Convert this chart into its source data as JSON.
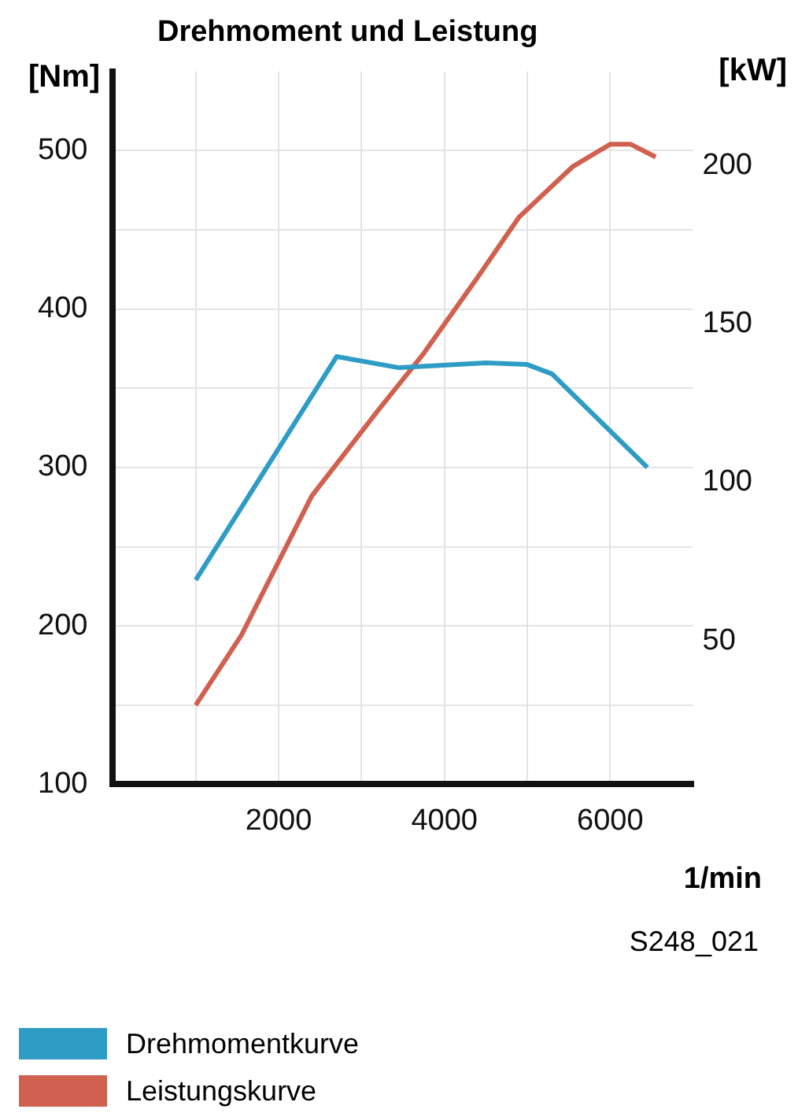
{
  "chart_data": {
    "type": "line",
    "title": "Drehmoment und Leistung",
    "ylabel": "[Nm]",
    "y2label": "[kW]",
    "xlabel": "1/min",
    "annotations": [
      "S248_021"
    ],
    "series": [
      {
        "name": "Drehmomentkurve",
        "color": "#2e9cc4",
        "x": [
          1000,
          2700,
          3450,
          4500,
          5000,
          5300,
          6450
        ],
        "values": [
          229,
          370,
          363,
          366,
          365,
          359,
          300
        ]
      },
      {
        "name": "Leistungskurve",
        "color": "#d0604f",
        "axis": "y2",
        "x": [
          1000,
          1550,
          2400,
          3200,
          3750,
          4400,
          4900,
          5550,
          6000,
          6250,
          6550
        ],
        "values": [
          25,
          47,
          91,
          118,
          136,
          160,
          179,
          195,
          202,
          202,
          198
        ]
      }
    ],
    "xlim": [
      0,
      7000
    ],
    "xticks": [
      {
        "value": 1000,
        "label": null
      },
      2000,
      {
        "value": 3000,
        "label": null
      },
      4000,
      {
        "value": 5000,
        "label": null
      },
      6000
    ],
    "ylim": [
      100,
      550
    ],
    "yticks": [
      100,
      {
        "value": 150,
        "label": null
      },
      200,
      {
        "value": 250,
        "label": null
      },
      300,
      {
        "value": 350,
        "label": null
      },
      400,
      {
        "value": 450,
        "label": null
      },
      500
    ],
    "y2lim": [
      0,
      225
    ],
    "y2ticks": [
      50,
      100,
      150,
      200
    ],
    "grid": true,
    "legend": "bottom",
    "marker": "none",
    "line_style": "solid"
  }
}
